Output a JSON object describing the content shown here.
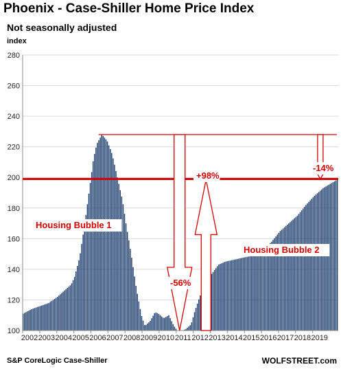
{
  "chart_data": {
    "type": "bar",
    "title": "Phoenix - Case-Shiller Home Price Index",
    "subtitle": "Not seasonally adjusted",
    "ylabel": "index",
    "source": "S&P CoreLogic Case-Shiller",
    "brand": "WOLFSTREET.com",
    "ylim": [
      100,
      280
    ],
    "yticks": [
      100,
      120,
      140,
      160,
      180,
      200,
      220,
      240,
      260,
      280
    ],
    "xlim": [
      2002,
      2020.5
    ],
    "xticks": [
      "2002",
      "2003",
      "2004",
      "2005",
      "2006",
      "2007",
      "2008",
      "2009",
      "2010",
      "2011",
      "2012",
      "2013",
      "2014",
      "2015",
      "2016",
      "2017",
      "2018",
      "2019"
    ],
    "bar_color": "#1f3f6e",
    "grid": true,
    "keypoints": [
      [
        2002.0,
        111
      ],
      [
        2002.5,
        114
      ],
      [
        2003.0,
        116
      ],
      [
        2003.5,
        118
      ],
      [
        2004.0,
        122
      ],
      [
        2004.4,
        126
      ],
      [
        2004.8,
        130
      ],
      [
        2005.0,
        135
      ],
      [
        2005.3,
        148
      ],
      [
        2005.6,
        170
      ],
      [
        2005.9,
        195
      ],
      [
        2006.1,
        212
      ],
      [
        2006.3,
        222
      ],
      [
        2006.6,
        228
      ],
      [
        2006.9,
        224
      ],
      [
        2007.2,
        215
      ],
      [
        2007.5,
        200
      ],
      [
        2007.8,
        185
      ],
      [
        2008.0,
        170
      ],
      [
        2008.3,
        150
      ],
      [
        2008.6,
        128
      ],
      [
        2008.9,
        110
      ],
      [
        2009.1,
        103
      ],
      [
        2009.4,
        106
      ],
      [
        2009.7,
        112
      ],
      [
        2009.9,
        111
      ],
      [
        2010.2,
        108
      ],
      [
        2010.5,
        110
      ],
      [
        2010.8,
        103
      ],
      [
        2011.0,
        100
      ],
      [
        2011.3,
        100
      ],
      [
        2011.5,
        101
      ],
      [
        2011.8,
        104
      ],
      [
        2012.0,
        112
      ],
      [
        2012.3,
        122
      ],
      [
        2012.6,
        130
      ],
      [
        2013.0,
        137
      ],
      [
        2013.4,
        143
      ],
      [
        2013.8,
        145
      ],
      [
        2014.2,
        146
      ],
      [
        2014.6,
        147
      ],
      [
        2015.0,
        148
      ],
      [
        2015.5,
        149
      ],
      [
        2016.0,
        153
      ],
      [
        2016.5,
        158
      ],
      [
        2017.0,
        165
      ],
      [
        2017.5,
        170
      ],
      [
        2018.0,
        175
      ],
      [
        2018.5,
        182
      ],
      [
        2019.0,
        188
      ],
      [
        2019.5,
        193
      ],
      [
        2020.4,
        199
      ]
    ],
    "reference_lines": {
      "peak": 228,
      "current": 199
    },
    "annotations": {
      "bubble1": "Housing Bubble 1",
      "bubble2": "Housing Bubble 2",
      "drop": "-56%",
      "rise": "+98%",
      "gap": "-14%"
    }
  }
}
